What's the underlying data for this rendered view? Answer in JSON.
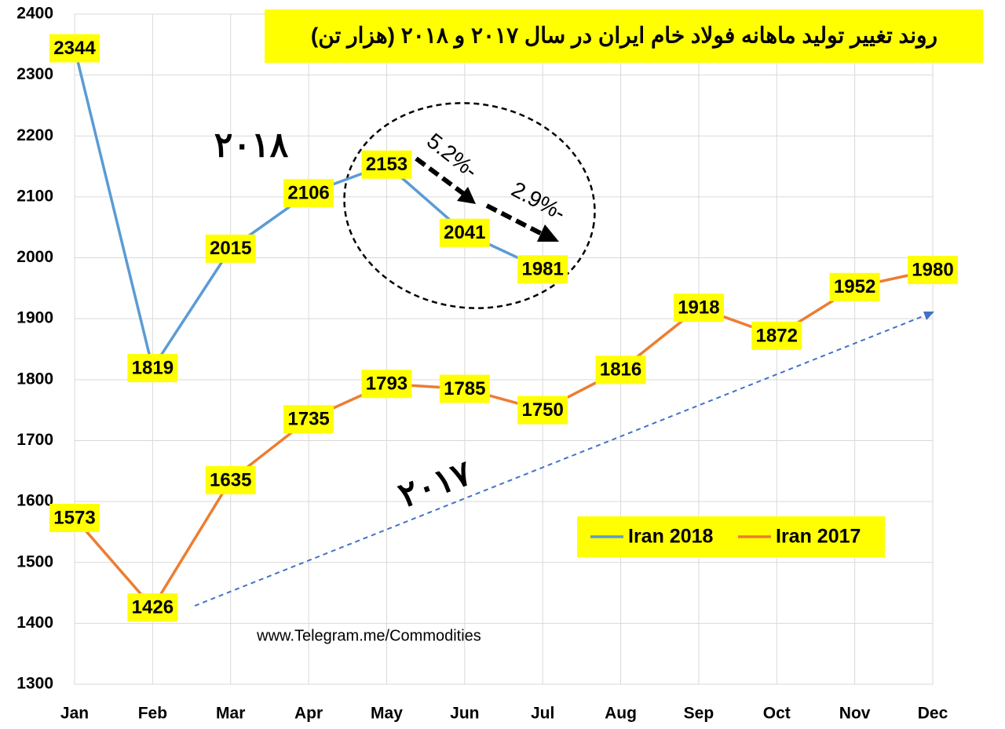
{
  "chart_data": {
    "type": "line",
    "title": "روند تغییر تولید ماهانه فولاد خام ایران در سال ۲۰۱۷ و ۲۰۱۸ (هزار تن)",
    "categories": [
      "Jan",
      "Feb",
      "Mar",
      "Apr",
      "May",
      "Jun",
      "Jul",
      "Aug",
      "Sep",
      "Oct",
      "Nov",
      "Dec"
    ],
    "series": [
      {
        "name": "Iran 2018",
        "color": "#5b9bd5",
        "values": [
          2344,
          1819,
          2015,
          2106,
          2153,
          2041,
          1981,
          null,
          null,
          null,
          null,
          null
        ]
      },
      {
        "name": "Iran 2017",
        "color": "#ed7d31",
        "values": [
          1573,
          1426,
          1635,
          1735,
          1793,
          1785,
          1750,
          1816,
          1918,
          1872,
          1952,
          1980
        ]
      }
    ],
    "ylim": [
      1300,
      2400
    ],
    "yticks": [
      1300,
      1400,
      1500,
      1600,
      1700,
      1800,
      1900,
      2000,
      2100,
      2200,
      2300,
      2400
    ],
    "grid": true,
    "legend": "lower right",
    "annotations": [
      "۲۰۱۸",
      "۲۰۱۷",
      "5.2%-",
      "2.9%-",
      "www.Telegram.me/Commodities"
    ]
  }
}
